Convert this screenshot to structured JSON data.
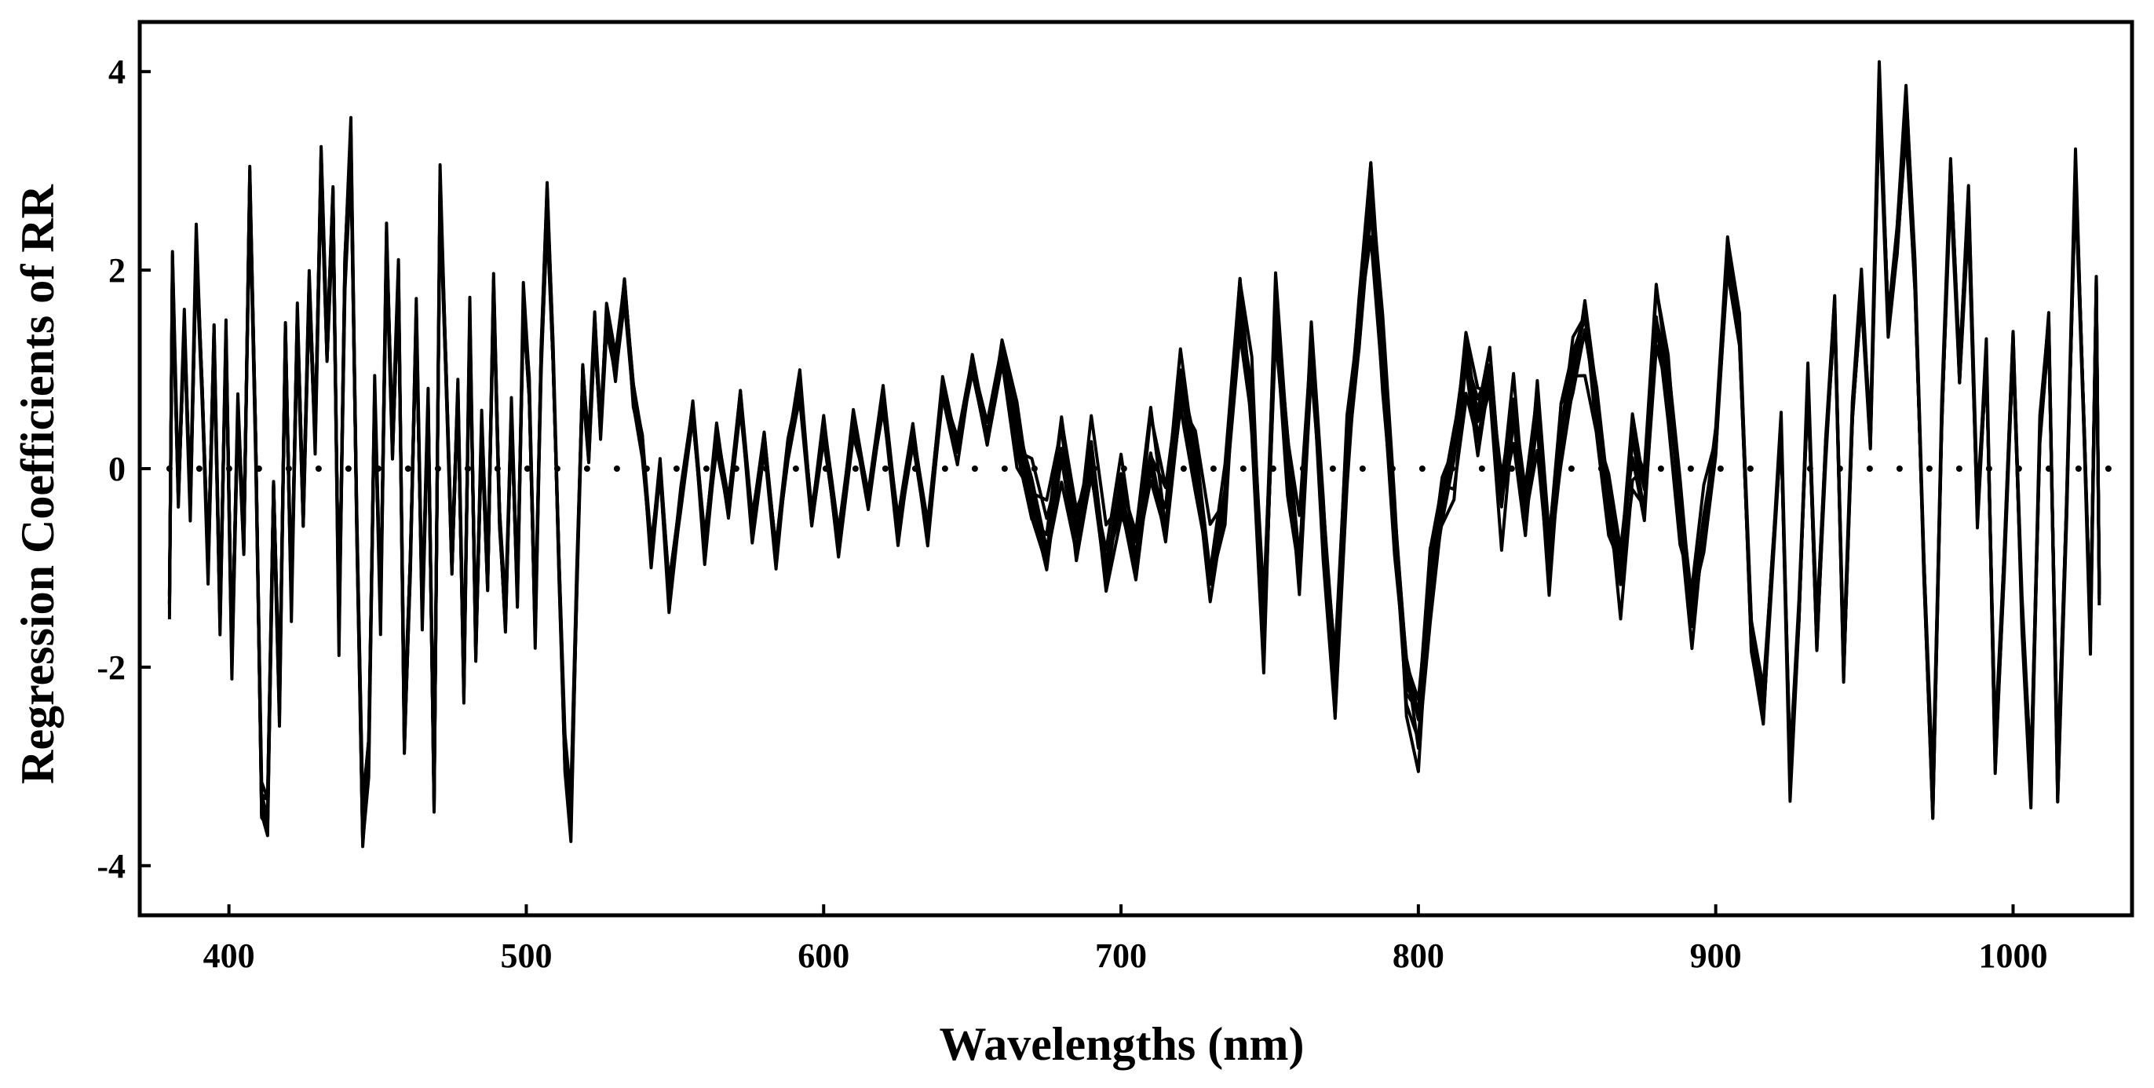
{
  "chart_data": {
    "type": "line",
    "title": "",
    "xlabel": "Wavelengths (nm)",
    "ylabel": "Regression Coefficients of RR",
    "xlim": [
      370,
      1040
    ],
    "ylim": [
      -4.5,
      4.5
    ],
    "x_ticks": [
      400,
      500,
      600,
      700,
      800,
      900,
      1000
    ],
    "y_ticks": [
      -4,
      -2,
      0,
      2,
      4
    ],
    "x_tick_labels": [
      "400",
      "500",
      "600",
      "700",
      "800",
      "900",
      "1000"
    ],
    "y_tick_labels": [
      "-4",
      "-2",
      "0",
      "2",
      "4"
    ],
    "grid": false,
    "legend": "none",
    "line_color": "#000000",
    "reference_line": {
      "y": 0,
      "style": "dotted",
      "x_range": [
        380,
        1040
      ]
    },
    "series_count": 10,
    "envelope": [
      {
        "x": 380,
        "y": -1.4
      },
      {
        "x": 381,
        "y": 2.1
      },
      {
        "x": 383,
        "y": -0.3
      },
      {
        "x": 385,
        "y": 1.5
      },
      {
        "x": 387,
        "y": -0.4
      },
      {
        "x": 389,
        "y": 2.3
      },
      {
        "x": 391,
        "y": 0.8
      },
      {
        "x": 393,
        "y": -1.0
      },
      {
        "x": 395,
        "y": 1.4
      },
      {
        "x": 397,
        "y": -1.6
      },
      {
        "x": 399,
        "y": 1.4
      },
      {
        "x": 401,
        "y": -2.0
      },
      {
        "x": 403,
        "y": 0.6
      },
      {
        "x": 405,
        "y": -0.8
      },
      {
        "x": 407,
        "y": 3.0
      },
      {
        "x": 409,
        "y": 0.3
      },
      {
        "x": 411,
        "y": -3.5
      },
      {
        "x": 413,
        "y": -3.65
      },
      {
        "x": 415,
        "y": -0.2
      },
      {
        "x": 417,
        "y": -2.5
      },
      {
        "x": 419,
        "y": 1.4
      },
      {
        "x": 421,
        "y": -1.4
      },
      {
        "x": 423,
        "y": 1.6
      },
      {
        "x": 425,
        "y": -0.5
      },
      {
        "x": 427,
        "y": 1.9
      },
      {
        "x": 429,
        "y": 0.3
      },
      {
        "x": 431,
        "y": 3.2
      },
      {
        "x": 433,
        "y": 1.2
      },
      {
        "x": 435,
        "y": 2.8
      },
      {
        "x": 437,
        "y": -1.7
      },
      {
        "x": 439,
        "y": 2.1
      },
      {
        "x": 441,
        "y": 3.4
      },
      {
        "x": 443,
        "y": -0.6
      },
      {
        "x": 445,
        "y": -3.75
      },
      {
        "x": 447,
        "y": -3.0
      },
      {
        "x": 449,
        "y": 0.8
      },
      {
        "x": 451,
        "y": -1.5
      },
      {
        "x": 453,
        "y": 2.4
      },
      {
        "x": 455,
        "y": 0.2
      },
      {
        "x": 457,
        "y": 2.0
      },
      {
        "x": 459,
        "y": -2.8
      },
      {
        "x": 461,
        "y": -1.0
      },
      {
        "x": 463,
        "y": 1.6
      },
      {
        "x": 465,
        "y": -1.5
      },
      {
        "x": 467,
        "y": 0.7
      },
      {
        "x": 469,
        "y": -3.45
      },
      {
        "x": 471,
        "y": 2.9
      },
      {
        "x": 473,
        "y": 1.0
      },
      {
        "x": 475,
        "y": -1.0
      },
      {
        "x": 477,
        "y": 0.8
      },
      {
        "x": 479,
        "y": -2.3
      },
      {
        "x": 481,
        "y": 1.6
      },
      {
        "x": 483,
        "y": -1.9
      },
      {
        "x": 485,
        "y": 0.4
      },
      {
        "x": 487,
        "y": -1.2
      },
      {
        "x": 489,
        "y": 1.9
      },
      {
        "x": 491,
        "y": -0.5
      },
      {
        "x": 493,
        "y": -1.6
      },
      {
        "x": 495,
        "y": 0.6
      },
      {
        "x": 497,
        "y": -1.3
      },
      {
        "x": 499,
        "y": 1.7
      },
      {
        "x": 501,
        "y": 0.8
      },
      {
        "x": 503,
        "y": -1.7
      },
      {
        "x": 505,
        "y": 1.2
      },
      {
        "x": 507,
        "y": 2.8
      },
      {
        "x": 509,
        "y": 1.2
      },
      {
        "x": 511,
        "y": -1.0
      },
      {
        "x": 513,
        "y": -3.0
      },
      {
        "x": 515,
        "y": -3.65
      },
      {
        "x": 517,
        "y": -1.2
      },
      {
        "x": 519,
        "y": 1.0
      },
      {
        "x": 521,
        "y": 0.2
      },
      {
        "x": 523,
        "y": 1.5
      },
      {
        "x": 525,
        "y": 0.4
      },
      {
        "x": 527,
        "y": 1.6
      },
      {
        "x": 530,
        "y": 1.0
      },
      {
        "x": 533,
        "y": 1.9
      },
      {
        "x": 536,
        "y": 0.8
      },
      {
        "x": 539,
        "y": 0.3
      },
      {
        "x": 542,
        "y": -0.9
      },
      {
        "x": 545,
        "y": 0.0
      },
      {
        "x": 548,
        "y": -1.3
      },
      {
        "x": 552,
        "y": -0.3
      },
      {
        "x": 556,
        "y": 0.6
      },
      {
        "x": 560,
        "y": -0.8
      },
      {
        "x": 564,
        "y": 0.4
      },
      {
        "x": 568,
        "y": -0.4
      },
      {
        "x": 572,
        "y": 0.7
      },
      {
        "x": 576,
        "y": -0.6
      },
      {
        "x": 580,
        "y": 0.3
      },
      {
        "x": 584,
        "y": -0.9
      },
      {
        "x": 588,
        "y": 0.2
      },
      {
        "x": 592,
        "y": 0.9
      },
      {
        "x": 596,
        "y": -0.5
      },
      {
        "x": 600,
        "y": 0.4
      },
      {
        "x": 605,
        "y": -0.8
      },
      {
        "x": 610,
        "y": 0.5
      },
      {
        "x": 615,
        "y": -0.3
      },
      {
        "x": 620,
        "y": 0.7
      },
      {
        "x": 625,
        "y": -0.6
      },
      {
        "x": 630,
        "y": 0.4
      },
      {
        "x": 635,
        "y": -0.7
      },
      {
        "x": 640,
        "y": 0.8
      },
      {
        "x": 645,
        "y": 0.2
      },
      {
        "x": 650,
        "y": 1.1
      },
      {
        "x": 655,
        "y": 0.3
      },
      {
        "x": 660,
        "y": 1.2
      },
      {
        "x": 665,
        "y": 0.4
      },
      {
        "x": 670,
        "y": -0.3
      },
      {
        "x": 675,
        "y": -0.9
      },
      {
        "x": 680,
        "y": 0.2
      },
      {
        "x": 685,
        "y": -0.7
      },
      {
        "x": 690,
        "y": 0.1
      },
      {
        "x": 695,
        "y": -1.0
      },
      {
        "x": 700,
        "y": -0.2
      },
      {
        "x": 705,
        "y": -0.9
      },
      {
        "x": 710,
        "y": 0.1
      },
      {
        "x": 715,
        "y": -0.6
      },
      {
        "x": 720,
        "y": 0.9
      },
      {
        "x": 725,
        "y": 0.1
      },
      {
        "x": 730,
        "y": -1.1
      },
      {
        "x": 735,
        "y": -0.3
      },
      {
        "x": 740,
        "y": 1.8
      },
      {
        "x": 744,
        "y": 0.6
      },
      {
        "x": 748,
        "y": -1.9
      },
      {
        "x": 752,
        "y": 1.7
      },
      {
        "x": 756,
        "y": 0.2
      },
      {
        "x": 760,
        "y": -1.0
      },
      {
        "x": 764,
        "y": 1.2
      },
      {
        "x": 768,
        "y": -0.5
      },
      {
        "x": 772,
        "y": -2.3
      },
      {
        "x": 776,
        "y": 0.1
      },
      {
        "x": 780,
        "y": 1.5
      },
      {
        "x": 784,
        "y": 3.0
      },
      {
        "x": 788,
        "y": 1.2
      },
      {
        "x": 792,
        "y": -0.6
      },
      {
        "x": 796,
        "y": -2.2
      },
      {
        "x": 800,
        "y": -2.7
      },
      {
        "x": 804,
        "y": -1.2
      },
      {
        "x": 808,
        "y": -0.4
      },
      {
        "x": 812,
        "y": 0.2
      },
      {
        "x": 816,
        "y": 1.2
      },
      {
        "x": 820,
        "y": 0.5
      },
      {
        "x": 824,
        "y": 1.0
      },
      {
        "x": 828,
        "y": -0.3
      },
      {
        "x": 832,
        "y": 0.6
      },
      {
        "x": 836,
        "y": -0.5
      },
      {
        "x": 840,
        "y": 0.7
      },
      {
        "x": 844,
        "y": -0.8
      },
      {
        "x": 848,
        "y": 0.4
      },
      {
        "x": 852,
        "y": 1.0
      },
      {
        "x": 856,
        "y": 1.5
      },
      {
        "x": 860,
        "y": 0.6
      },
      {
        "x": 864,
        "y": -0.4
      },
      {
        "x": 868,
        "y": -1.1
      },
      {
        "x": 872,
        "y": 0.3
      },
      {
        "x": 876,
        "y": -0.2
      },
      {
        "x": 880,
        "y": 1.5
      },
      {
        "x": 884,
        "y": 0.9
      },
      {
        "x": 888,
        "y": -0.4
      },
      {
        "x": 892,
        "y": -1.5
      },
      {
        "x": 896,
        "y": -0.6
      },
      {
        "x": 900,
        "y": 0.3
      },
      {
        "x": 904,
        "y": 2.3
      },
      {
        "x": 908,
        "y": 1.4
      },
      {
        "x": 912,
        "y": -1.8
      },
      {
        "x": 916,
        "y": -2.5
      },
      {
        "x": 919,
        "y": -1.0
      },
      {
        "x": 922,
        "y": 0.4
      },
      {
        "x": 925,
        "y": -3.2
      },
      {
        "x": 928,
        "y": -1.5
      },
      {
        "x": 931,
        "y": 0.9
      },
      {
        "x": 934,
        "y": -1.8
      },
      {
        "x": 937,
        "y": 0.2
      },
      {
        "x": 940,
        "y": 1.7
      },
      {
        "x": 943,
        "y": -2.1
      },
      {
        "x": 946,
        "y": 0.6
      },
      {
        "x": 949,
        "y": 1.9
      },
      {
        "x": 952,
        "y": 0.3
      },
      {
        "x": 955,
        "y": 4.0
      },
      {
        "x": 958,
        "y": 1.5
      },
      {
        "x": 961,
        "y": 2.4
      },
      {
        "x": 964,
        "y": 3.8
      },
      {
        "x": 967,
        "y": 2.0
      },
      {
        "x": 970,
        "y": -1.0
      },
      {
        "x": 973,
        "y": -3.5
      },
      {
        "x": 976,
        "y": 0.5
      },
      {
        "x": 979,
        "y": 3.1
      },
      {
        "x": 982,
        "y": 1.0
      },
      {
        "x": 985,
        "y": 2.8
      },
      {
        "x": 988,
        "y": -0.5
      },
      {
        "x": 991,
        "y": 1.2
      },
      {
        "x": 994,
        "y": -3.0
      },
      {
        "x": 997,
        "y": -1.0
      },
      {
        "x": 1000,
        "y": 1.3
      },
      {
        "x": 1003,
        "y": -1.5
      },
      {
        "x": 1006,
        "y": -3.3
      },
      {
        "x": 1009,
        "y": 0.4
      },
      {
        "x": 1012,
        "y": 1.5
      },
      {
        "x": 1015,
        "y": -3.3
      },
      {
        "x": 1018,
        "y": -0.4
      },
      {
        "x": 1021,
        "y": 3.1
      },
      {
        "x": 1024,
        "y": 0.3
      },
      {
        "x": 1026,
        "y": -1.7
      },
      {
        "x": 1028,
        "y": 1.9
      },
      {
        "x": 1029,
        "y": -1.3
      }
    ]
  }
}
